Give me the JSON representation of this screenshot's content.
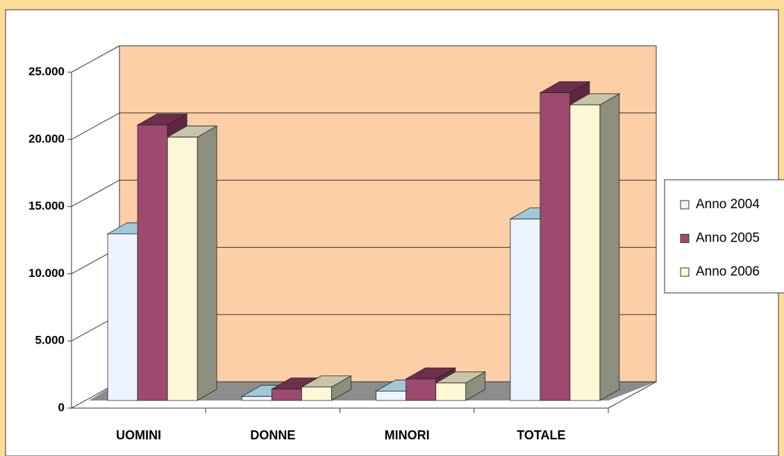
{
  "chart_data": {
    "type": "bar3d",
    "categories": [
      "UOMINI",
      "DONNE",
      "MINORI",
      "TOTALE"
    ],
    "series": [
      {
        "name": "Anno 2004",
        "color": "#eef4ff",
        "top_color": "#9fc9d8",
        "side_color": "#7fa9b8",
        "values": [
          12400,
          300,
          700,
          13500
        ]
      },
      {
        "name": "Anno 2005",
        "color": "#9e4a70",
        "top_color": "#6e2f4d",
        "side_color": "#5e2741",
        "values": [
          20500,
          850,
          1600,
          22900
        ]
      },
      {
        "name": "Anno 2006",
        "color": "#fff8d6",
        "top_color": "#c8c4a8",
        "side_color": "#8d8f7e",
        "values": [
          19600,
          1000,
          1300,
          22000
        ]
      }
    ],
    "ylim": [
      0,
      25000
    ],
    "yticks": [
      0,
      {
        "value": 5000,
        "label": "5.000"
      },
      {
        "value": 10000,
        "label": "10.000"
      },
      {
        "value": 15000,
        "label": "15.000"
      },
      {
        "value": 20000,
        "label": "20.000"
      },
      {
        "value": 25000,
        "label": "25.000"
      }
    ],
    "grid": true,
    "legend": "right",
    "wall_color": "#fccfa6",
    "floor_color": "#8c8c8c"
  }
}
